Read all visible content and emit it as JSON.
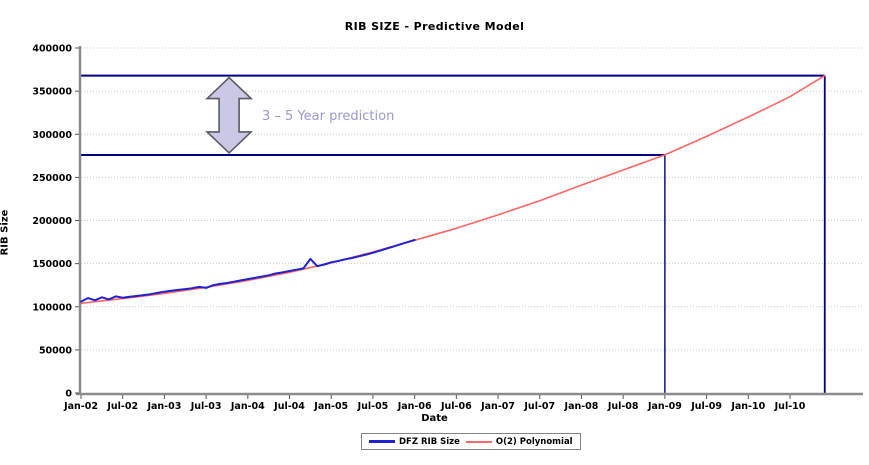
{
  "chart_data": {
    "type": "line",
    "title": "RIB SIZE - Predictive Model",
    "xlabel": "Date",
    "ylabel": "RIB Size",
    "ylim": [
      0,
      400000
    ],
    "y_tick_interval": 50000,
    "y_ticks": [
      "0",
      "50000",
      "100000",
      "150000",
      "200000",
      "250000",
      "300000",
      "350000",
      "400000"
    ],
    "x_ticks": [
      "Jan-02",
      "Jul-02",
      "Jan-03",
      "Jul-03",
      "Jan-04",
      "Jul-04",
      "Jan-05",
      "Jul-05",
      "Jan-06",
      "Jul-06",
      "Jan-07",
      "Jul-07",
      "Jan-08",
      "Jul-08",
      "Jan-09",
      "Jul-09",
      "Jan-10",
      "Jul-10"
    ],
    "x_unit": "months since Jan-2002",
    "grid": "horizontal-dotted",
    "legend_position": "bottom-center",
    "series": [
      {
        "name": "DFZ RIB Size",
        "color": "#2222cc",
        "x": [
          0,
          1,
          2,
          3,
          4,
          5,
          6,
          7,
          8,
          9,
          10,
          11,
          12,
          13,
          14,
          15,
          16,
          17,
          18,
          19,
          20,
          21,
          22,
          23,
          24,
          25,
          26,
          27,
          28,
          29,
          30,
          31,
          32,
          33,
          34,
          35,
          36,
          37,
          38,
          39,
          40,
          41,
          42,
          43,
          44,
          45,
          46,
          47,
          48
        ],
        "values": [
          106000,
          110000,
          107500,
          111000,
          108500,
          112000,
          110500,
          111500,
          112500,
          113500,
          114500,
          116000,
          117500,
          118500,
          119500,
          120500,
          121500,
          123000,
          121800,
          125000,
          126500,
          127500,
          129000,
          130500,
          132000,
          133500,
          135000,
          136500,
          138500,
          140000,
          141500,
          143000,
          144500,
          155500,
          147000,
          149000,
          151500,
          153000,
          155000,
          156500,
          158500,
          160500,
          162500,
          165000,
          167500,
          170000,
          172500,
          175000,
          177500
        ]
      },
      {
        "name": "O(2) Polynomial",
        "color": "#ff6666",
        "x": [
          0,
          6,
          12,
          18,
          24,
          30,
          36,
          42,
          48,
          54,
          60,
          66,
          72,
          78,
          84,
          90,
          96,
          102,
          107
        ],
        "values": [
          104000,
          109500,
          115500,
          122500,
          130500,
          140000,
          151000,
          163500,
          177000,
          191000,
          206500,
          223000,
          241000,
          258500,
          276000,
          297500,
          320000,
          343500,
          368000
        ]
      }
    ],
    "annotations": {
      "prediction_label": {
        "text": "3 – 5 Year prediction",
        "color": "#9999cc"
      },
      "upper_prediction_line": {
        "value": 368000,
        "end_month": 107,
        "color": "#000080"
      },
      "lower_prediction_line": {
        "value": 276000,
        "end_month": 84,
        "color": "#000080"
      },
      "vertical_drop_lines_months": [
        84,
        107
      ],
      "range_arrow": {
        "center_month": 21.3,
        "from_value": 276000,
        "to_value": 368000,
        "fill": "#c9c9e6",
        "outline": "#5a5a66"
      }
    },
    "colors": {
      "gridline": "#c9c9c9",
      "axis": "#8c8c8c",
      "tick": "#555555",
      "prediction_lines": "#000080"
    }
  }
}
